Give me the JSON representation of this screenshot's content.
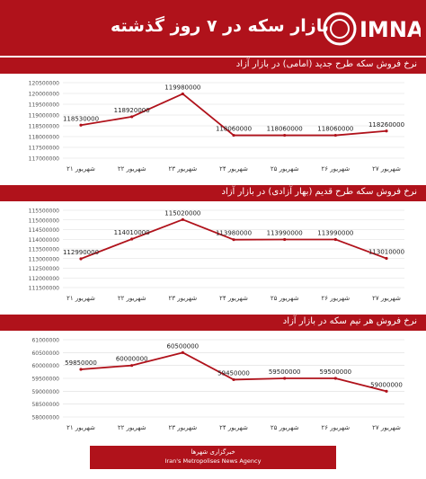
{
  "header": {
    "title": "بازار سکه در ۷ روز گذشته",
    "logo_text": "IMNA",
    "brand_color": "#b0121b"
  },
  "footer": {
    "line1": "خبرگزاری شهرها",
    "line2": "Iran's Metropolises News Agency"
  },
  "chart_data": [
    {
      "type": "line",
      "title": "نرخ فروش سکه طرح جدید (امامی) در بازار آزاد",
      "categories": [
        "۲۱ شهریور",
        "۲۲ شهریور",
        "۲۳ شهریور",
        "۲۴ شهریور",
        "۲۵ شهریور",
        "۲۶ شهریور",
        "۲۷ شهریور"
      ],
      "values": [
        118530000,
        118920000,
        119980000,
        118060000,
        118060000,
        118060000,
        118260000
      ],
      "ylim": [
        117000000,
        120500000
      ],
      "yticks": [
        117000000,
        117500000,
        118000000,
        118500000,
        119000000,
        119500000,
        120000000,
        120500000
      ],
      "ytick_labels": [
        "117000000",
        "117500000",
        "118000000",
        "118500000",
        "119000000",
        "119500000",
        "120000000",
        "120500000"
      ],
      "data_labels": [
        "118530000",
        "118920000",
        "119980000",
        "118060000",
        "118060000",
        "118060000",
        "118260000"
      ],
      "color": "#b0121b",
      "grid": true
    },
    {
      "type": "line",
      "title": "نرخ فروش سکه طرح قدیم (بهار آزادی) در بازار آزاد",
      "categories": [
        "۲۱ شهریور",
        "۲۲ شهریور",
        "۲۳ شهریور",
        "۲۴ شهریور",
        "۲۵ شهریور",
        "۲۶ شهریور",
        "۲۷ شهریور"
      ],
      "values": [
        112990000,
        114010000,
        115020000,
        113980000,
        113990000,
        113990000,
        113010000
      ],
      "ylim": [
        111500000,
        115500000
      ],
      "yticks": [
        111500000,
        112000000,
        112500000,
        113000000,
        113500000,
        114000000,
        114500000,
        115000000,
        115500000
      ],
      "ytick_labels": [
        "111500000",
        "112000000",
        "112500000",
        "113000000",
        "113500000",
        "114000000",
        "114500000",
        "115000000",
        "115500000"
      ],
      "data_labels": [
        "112990000",
        "114010000",
        "115020000",
        "113980000",
        "113990000",
        "113990000",
        "113010000"
      ],
      "color": "#b0121b",
      "grid": true
    },
    {
      "type": "line",
      "title": "نرخ فروش هر نیم سکه در بازار آزاد",
      "categories": [
        "۲۱ شهریور",
        "۲۲ شهریور",
        "۲۳ شهریور",
        "۲۴ شهریور",
        "۲۵ شهریور",
        "۲۶ شهریور",
        "۲۷ شهریور"
      ],
      "values": [
        59850000,
        60000000,
        60500000,
        59450000,
        59500000,
        59500000,
        59000000
      ],
      "ylim": [
        58000000,
        61000000
      ],
      "yticks": [
        58000000,
        58500000,
        59000000,
        59500000,
        60000000,
        60500000,
        61000000
      ],
      "ytick_labels": [
        "58000000",
        "58500000",
        "59000000",
        "59500000",
        "60000000",
        "60500000",
        "61000000"
      ],
      "data_labels": [
        "59850000",
        "60000000",
        "60500000",
        "59450000",
        "59500000",
        "59500000",
        "59000000"
      ],
      "color": "#b0121b",
      "grid": true
    }
  ]
}
